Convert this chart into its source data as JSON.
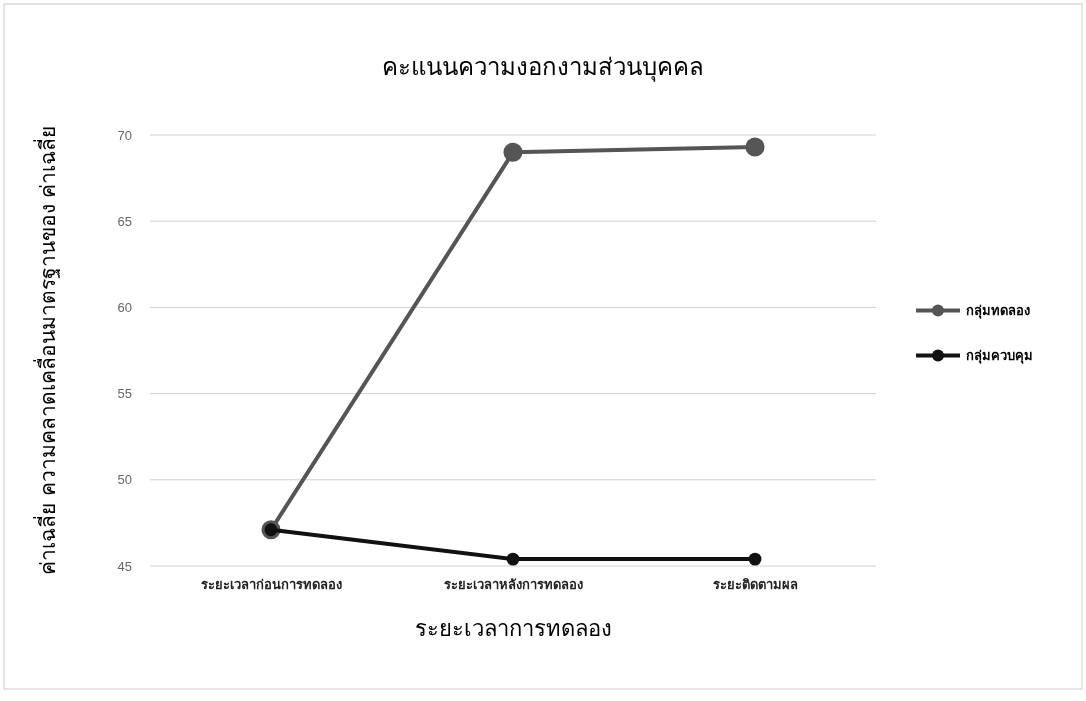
{
  "chart_data": {
    "type": "line",
    "title": "คะแนนความงอกงามส่วนบุคคล",
    "xlabel": "ระยะเวลาการทดลอง",
    "ylabel": "ค่าเฉลี่ย ความคลาดเคลื่อนมาตรฐานของ ค่าเฉลี่ย",
    "categories": [
      "ระยะเวลาก่อนการทดลอง",
      "ระยะเวลาหลังการทดลอง",
      "ระยะติดตามผล"
    ],
    "series": [
      {
        "name": "กลุ่มทดลอง",
        "color": "#555555",
        "values": [
          47.1,
          69.0,
          69.3
        ]
      },
      {
        "name": "กลุ่มควบคุม",
        "color": "#111111",
        "values": [
          47.1,
          45.4,
          45.4
        ]
      }
    ],
    "ylim": [
      45,
      70
    ],
    "yticks": [
      45,
      50,
      55,
      60,
      65,
      70
    ],
    "grid": "y",
    "legend": "right",
    "marker": "circle",
    "line_style": "solid"
  }
}
